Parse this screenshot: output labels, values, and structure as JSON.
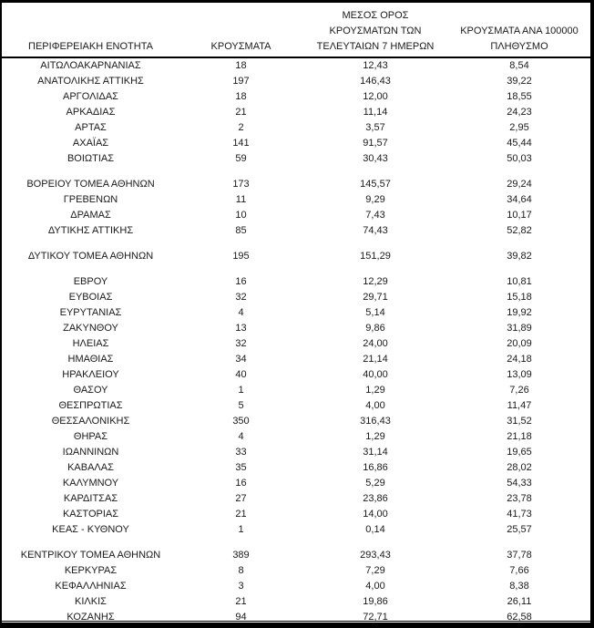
{
  "table": {
    "header": {
      "region": "ΠΕΡΙΦΕΡΕΙΑΚΗ ΕΝΟΤΗΤΑ",
      "cases": "ΚΡΟΥΣΜΑΤΑ",
      "avg7_line1": "ΜΕΣΟΣ ΟΡΟΣ",
      "avg7_line2": "ΚΡΟΥΣΜΑΤΩΝ ΤΩΝ",
      "avg7_line3": "ΤΕΛΕΥΤΑΙΩΝ 7 ΗΜΕΡΩΝ",
      "per100k_line1": "ΚΡΟΥΣΜΑΤΑ ΑΝΑ 100000",
      "per100k_line2": "ΠΛΗΘΥΣΜΟ"
    },
    "groups": [
      [
        [
          "ΑΙΤΩΛΟΑΚΑΡΝΑΝΙΑΣ",
          "18",
          "12,43",
          "8,54"
        ],
        [
          "ΑΝΑΤΟΛΙΚΗΣ ΑΤΤΙΚΗΣ",
          "197",
          "146,43",
          "39,22"
        ],
        [
          "ΑΡΓΟΛΙΔΑΣ",
          "18",
          "12,00",
          "18,55"
        ],
        [
          "ΑΡΚΑΔΙΑΣ",
          "21",
          "11,14",
          "24,23"
        ],
        [
          "ΑΡΤΑΣ",
          "2",
          "3,57",
          "2,95"
        ],
        [
          "ΑΧΑΪΑΣ",
          "141",
          "91,57",
          "45,44"
        ],
        [
          "ΒΟΙΩΤΙΑΣ",
          "59",
          "30,43",
          "50,03"
        ]
      ],
      [
        [
          "ΒΟΡΕΙΟΥ ΤΟΜΕΑ ΑΘΗΝΩΝ",
          "173",
          "145,57",
          "29,24"
        ],
        [
          "ΓΡΕΒΕΝΩΝ",
          "11",
          "9,29",
          "34,64"
        ],
        [
          "ΔΡΑΜΑΣ",
          "10",
          "7,43",
          "10,17"
        ],
        [
          "ΔΥΤΙΚΗΣ ΑΤΤΙΚΗΣ",
          "85",
          "74,43",
          "52,82"
        ]
      ],
      [
        [
          "ΔΥΤΙΚΟΥ ΤΟΜΕΑ ΑΘΗΝΩΝ",
          "195",
          "151,29",
          "39,82"
        ]
      ],
      [
        [
          "ΕΒΡΟΥ",
          "16",
          "12,29",
          "10,81"
        ],
        [
          "ΕΥΒΟΙΑΣ",
          "32",
          "29,71",
          "15,18"
        ],
        [
          "ΕΥΡΥΤΑΝΙΑΣ",
          "4",
          "5,14",
          "19,92"
        ],
        [
          "ΖΑΚΥΝΘΟΥ",
          "13",
          "9,86",
          "31,89"
        ],
        [
          "ΗΛΕΙΑΣ",
          "32",
          "24,00",
          "20,09"
        ],
        [
          "ΗΜΑΘΙΑΣ",
          "34",
          "21,14",
          "24,18"
        ],
        [
          "ΗΡΑΚΛΕΙΟΥ",
          "40",
          "40,00",
          "13,09"
        ],
        [
          "ΘΑΣΟΥ",
          "1",
          "1,29",
          "7,26"
        ],
        [
          "ΘΕΣΠΡΩΤΙΑΣ",
          "5",
          "4,00",
          "11,47"
        ],
        [
          "ΘΕΣΣΑΛΟΝΙΚΗΣ",
          "350",
          "316,43",
          "31,52"
        ],
        [
          "ΘΗΡΑΣ",
          "4",
          "1,29",
          "21,18"
        ],
        [
          "ΙΩΑΝΝΙΝΩΝ",
          "33",
          "31,14",
          "19,65"
        ],
        [
          "ΚΑΒΑΛΑΣ",
          "35",
          "16,86",
          "28,02"
        ],
        [
          "ΚΑΛΥΜΝΟΥ",
          "16",
          "5,29",
          "54,33"
        ],
        [
          "ΚΑΡΔΙΤΣΑΣ",
          "27",
          "23,86",
          "23,78"
        ],
        [
          "ΚΑΣΤΟΡΙΑΣ",
          "21",
          "14,00",
          "41,73"
        ],
        [
          "ΚΕΑΣ - ΚΥΘΝΟΥ",
          "1",
          "0,14",
          "25,57"
        ]
      ],
      [
        [
          "ΚΕΝΤΡΙΚΟΥ ΤΟΜΕΑ ΑΘΗΝΩΝ",
          "389",
          "293,43",
          "37,78"
        ],
        [
          "ΚΕΡΚΥΡΑΣ",
          "8",
          "7,29",
          "7,66"
        ],
        [
          "ΚΕΦΑΛΛΗΝΙΑΣ",
          "3",
          "4,00",
          "8,38"
        ],
        [
          "ΚΙΛΚΙΣ",
          "21",
          "19,86",
          "26,11"
        ],
        [
          "ΚΟΖΑΝΗΣ",
          "94",
          "72,71",
          "62,58"
        ]
      ]
    ]
  }
}
